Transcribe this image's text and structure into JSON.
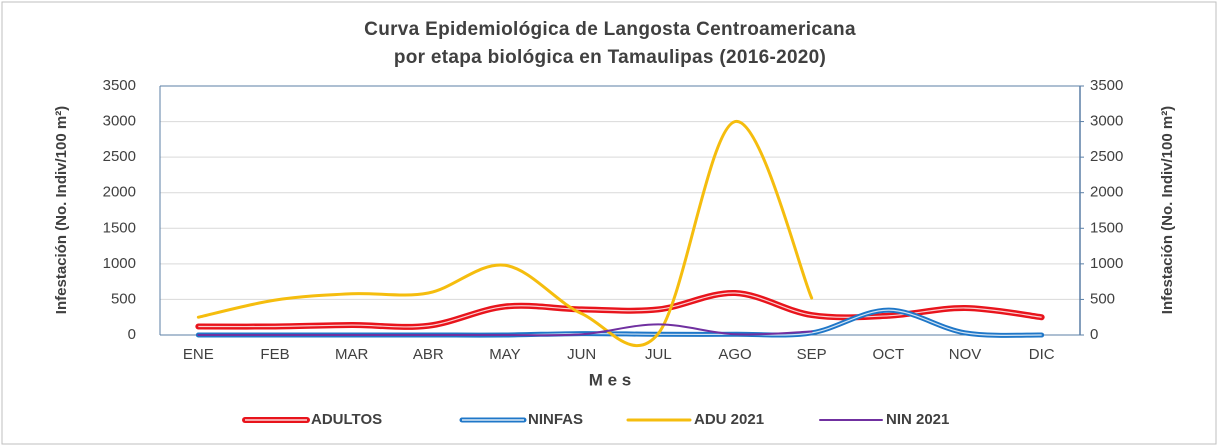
{
  "chart_data": {
    "type": "line",
    "title": "Curva Epidemiológica de Langosta Centroamericana por etapa biológica en Tamaulipas (2016-2020)",
    "xlabel": "M e s",
    "ylabel": "Infestación (No. Indiv/100 m²)",
    "y2label": "Infestación (No. Indiv/100 m²)",
    "categories": [
      "ENE",
      "FEB",
      "MAR",
      "ABR",
      "MAY",
      "JUN",
      "JUL",
      "AGO",
      "SEP",
      "OCT",
      "NOV",
      "DIC"
    ],
    "series": [
      {
        "name": "ADULTOS",
        "color": "#e8141c",
        "values": [
          120,
          120,
          140,
          130,
          400,
          360,
          360,
          590,
          280,
          270,
          380,
          250
        ]
      },
      {
        "name": "NINFAS",
        "color": "#1f77c8",
        "values": [
          0,
          0,
          0,
          0,
          0,
          20,
          10,
          10,
          30,
          350,
          30,
          0
        ]
      },
      {
        "name": "ADU 2021",
        "color": "#f5bd0e",
        "values": [
          250,
          490,
          580,
          590,
          980,
          300,
          20,
          3000,
          520,
          null,
          null,
          null
        ]
      },
      {
        "name": "NIN 2021",
        "color": "#7030a0",
        "values": [
          0,
          0,
          0,
          0,
          0,
          10,
          150,
          10,
          50,
          null,
          null,
          null
        ]
      }
    ],
    "ylim": [
      0,
      3500
    ],
    "yticks": [
      0,
      500,
      1000,
      1500,
      2000,
      2500,
      3000,
      3500
    ],
    "y2lim": [
      0,
      3500
    ],
    "y2ticks": [
      0,
      500,
      1000,
      1500,
      2000,
      2500,
      3000,
      3500
    ],
    "grid": true,
    "legend": "bottom"
  }
}
